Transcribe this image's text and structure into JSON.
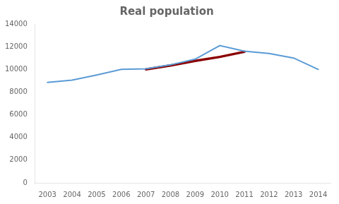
{
  "chart_data": {
    "type": "line",
    "title": "Real population",
    "series": [
      {
        "x": [
          2003,
          2004,
          2005,
          2006,
          2007,
          2008,
          2009,
          2010,
          2011,
          2012,
          2013,
          2014
        ],
        "values": [
          8850,
          9050,
          9500,
          10000,
          10050,
          10400,
          10900,
          12100,
          11600,
          11400,
          11000,
          10000
        ],
        "color": "#5b9bd5"
      },
      {
        "x": [
          2007,
          2008,
          2009,
          2010,
          2011
        ],
        "values": [
          10000,
          10350,
          10750,
          11100,
          11550
        ],
        "color": "#8b0000"
      }
    ],
    "xlim": [
      2002.5,
      2014.5
    ],
    "xticks": [
      2003,
      2004,
      2005,
      2006,
      2007,
      2008,
      2009,
      2010,
      2011,
      2012,
      2013,
      2014
    ],
    "ylim": [
      0,
      14000
    ],
    "yticks": [
      0,
      2000,
      4000,
      6000,
      8000,
      10000,
      12000,
      14000
    ],
    "grid": false
  }
}
